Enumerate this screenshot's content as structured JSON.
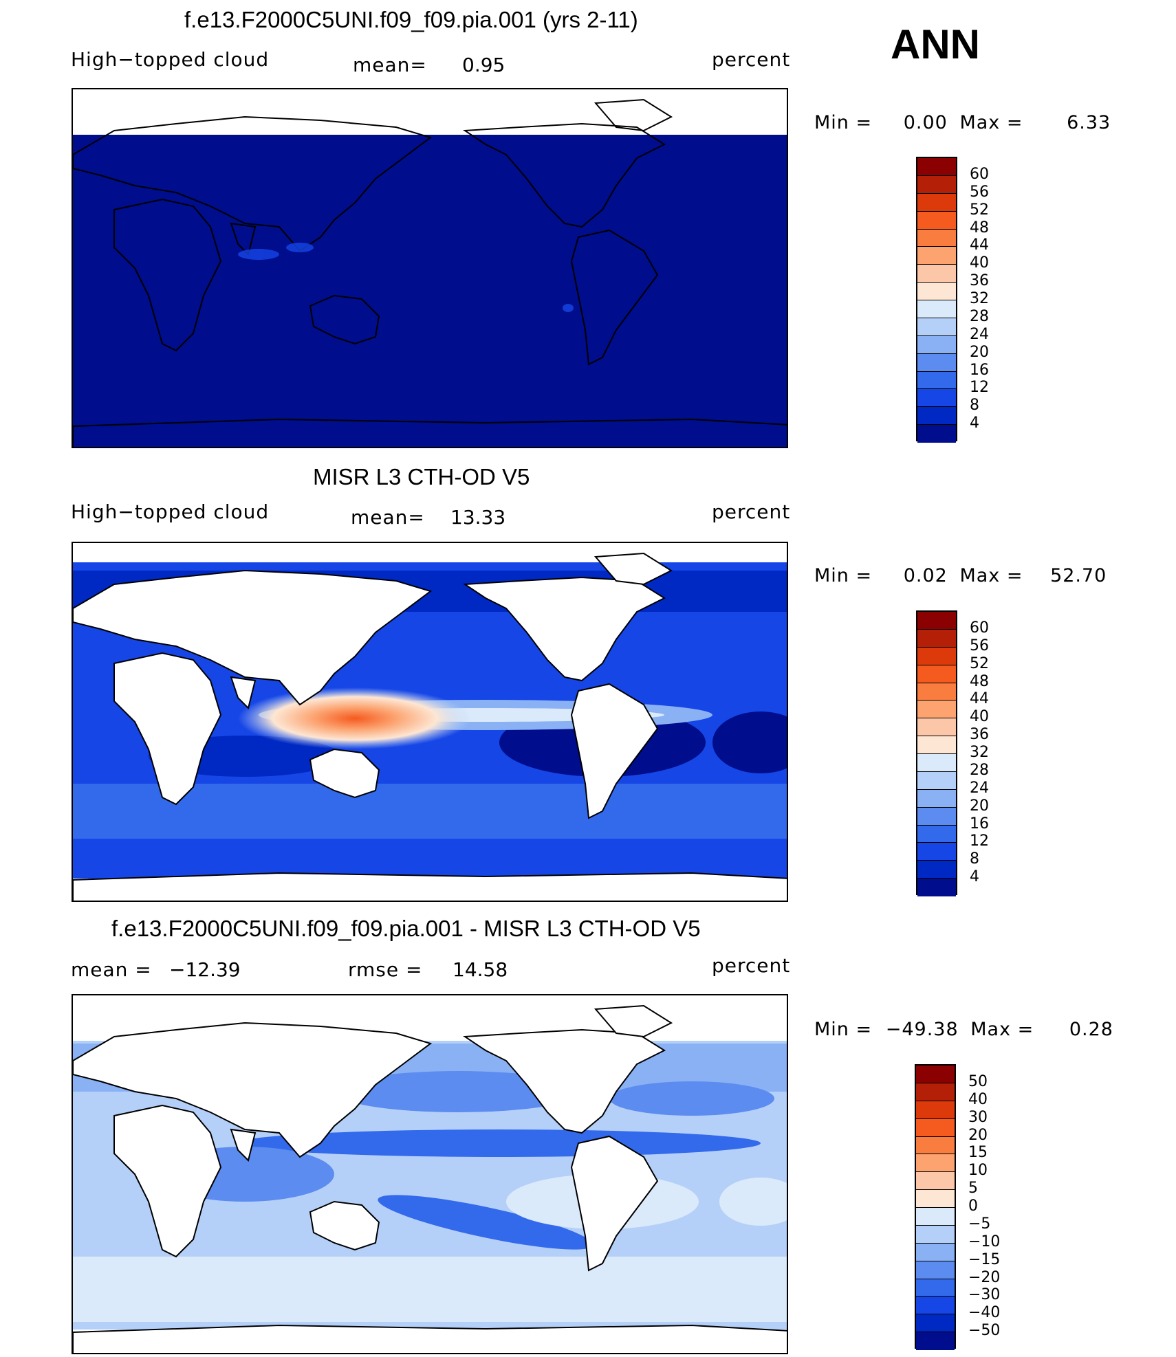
{
  "season": "ANN",
  "chart_data": [
    {
      "type": "heatmap",
      "title": "f.e13.F2000C5UNI.f09_f09.pia.001 (yrs 2-11)",
      "variable": "High−topped cloud",
      "mean_label": "mean=",
      "mean": "0.95",
      "units": "percent",
      "min_label": "Min =",
      "min": "0.00",
      "max_label": "Max =",
      "max": "6.33",
      "colorbar_levels": [
        "60",
        "56",
        "52",
        "48",
        "44",
        "40",
        "36",
        "32",
        "28",
        "24",
        "20",
        "16",
        "12",
        "8",
        "4"
      ],
      "colorbar_colors": [
        "#8b0000",
        "#b41f08",
        "#dd3a0c",
        "#f55a1e",
        "#fa7d40",
        "#fca370",
        "#fcc7a8",
        "#fde6d3",
        "#dbeafb",
        "#b5d0f8",
        "#8ab1f4",
        "#5c8cf0",
        "#336aec",
        "#1646e6",
        "#0029c4",
        "#000d8c"
      ],
      "map_fill": "#000d8c"
    },
    {
      "type": "heatmap",
      "title": "MISR L3 CTH-OD V5",
      "variable": "High−topped cloud",
      "mean_label": "mean=",
      "mean": "13.33",
      "units": "percent",
      "min_label": "Min =",
      "min": "0.02",
      "max_label": "Max =",
      "max": "52.70",
      "colorbar_levels": [
        "60",
        "56",
        "52",
        "48",
        "44",
        "40",
        "36",
        "32",
        "28",
        "24",
        "20",
        "16",
        "12",
        "8",
        "4"
      ],
      "colorbar_colors": [
        "#8b0000",
        "#b41f08",
        "#dd3a0c",
        "#f55a1e",
        "#fa7d40",
        "#fca370",
        "#fcc7a8",
        "#fde6d3",
        "#dbeafb",
        "#b5d0f8",
        "#8ab1f4",
        "#5c8cf0",
        "#336aec",
        "#1646e6",
        "#0029c4",
        "#000d8c"
      ]
    },
    {
      "type": "heatmap",
      "title": "f.e13.F2000C5UNI.f09_f09.pia.001 - MISR L3 CTH-OD V5",
      "mean_label": "mean =",
      "mean": "−12.39",
      "rmse_label": "rmse =",
      "rmse": "14.58",
      "units": "percent",
      "min_label": "Min =",
      "min": "−49.38",
      "max_label": "Max =",
      "max": "0.28",
      "colorbar_levels": [
        "50",
        "40",
        "30",
        "20",
        "15",
        "10",
        "5",
        "0",
        "−5",
        "−10",
        "−15",
        "−20",
        "−30",
        "−40",
        "−50"
      ],
      "colorbar_colors": [
        "#8b0000",
        "#b41f08",
        "#dd3a0c",
        "#f55a1e",
        "#fa7d40",
        "#fca370",
        "#fcc7a8",
        "#fde6d3",
        "#dbeafb",
        "#b5d0f8",
        "#8ab1f4",
        "#5c8cf0",
        "#336aec",
        "#1646e6",
        "#0029c4",
        "#000d8c"
      ]
    }
  ]
}
